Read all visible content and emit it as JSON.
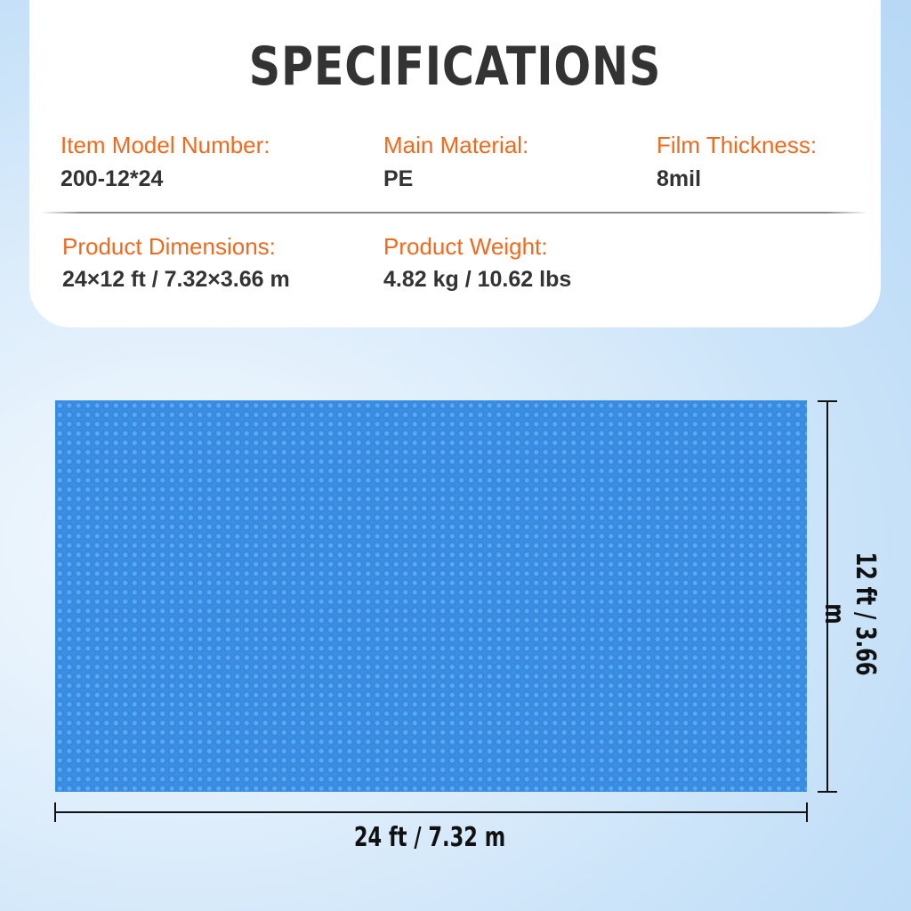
{
  "title": "SPECIFICATIONS",
  "specs": [
    {
      "label": "Item Model Number:",
      "value": "200-12*24"
    },
    {
      "label": "Main Material:",
      "value": "PE"
    },
    {
      "label": "Film Thickness:",
      "value": "8mil"
    },
    {
      "label": "Product Dimensions:",
      "value": "24×12 ft / 7.32×3.66 m"
    },
    {
      "label": "Product Weight:",
      "value": "4.82 kg / 10.62 lbs"
    }
  ],
  "dimensions": {
    "width_label": "24 ft / 7.32 m",
    "height_label": "12 ft / 3.66 m"
  },
  "colors": {
    "label": "#f06a1d",
    "value": "#333333",
    "cover": "#3a8fe2"
  }
}
